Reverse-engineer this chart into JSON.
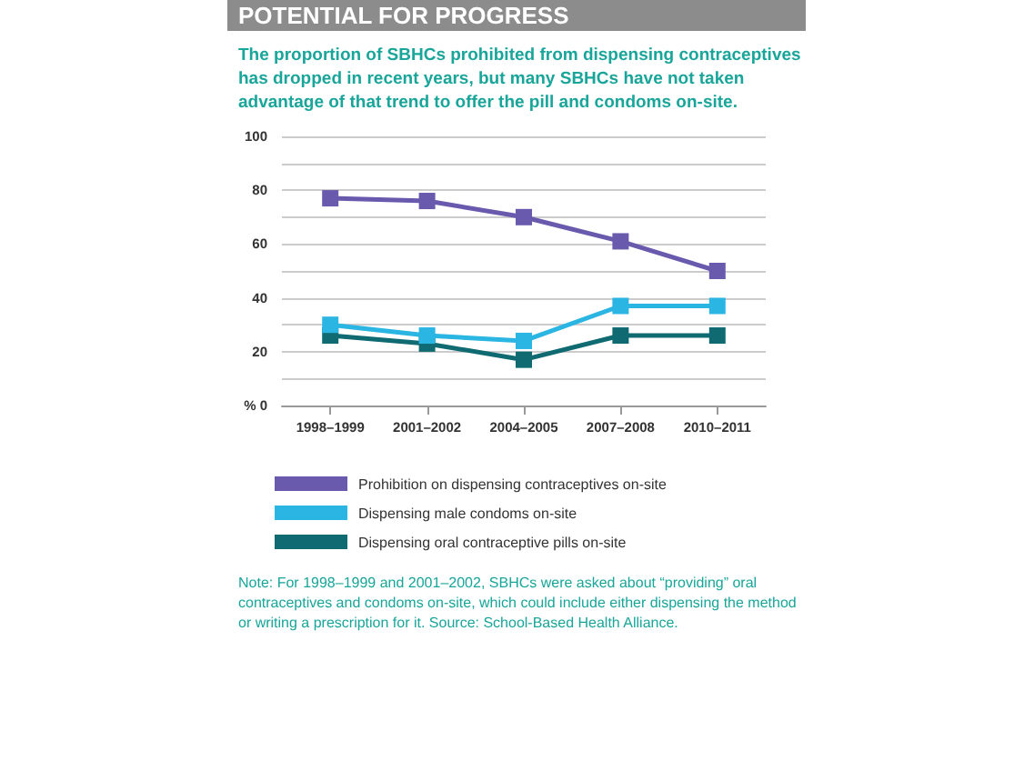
{
  "chart_data": {
    "type": "line",
    "title": "POTENTIAL FOR PROGRESS",
    "subtitle": "The proportion of SBHCs prohibited from dispensing contraceptives has dropped in recent years, but many SBHCs have not taken advantage of that trend to offer the pill and condoms on-site.",
    "categories": [
      "1998–1999",
      "2001–2002",
      "2004–2005",
      "2007–2008",
      "2010–2011"
    ],
    "series": [
      {
        "name": "Prohibition on dispensing contraceptives on-site",
        "color": "#6a5aad",
        "values": [
          77,
          76,
          70,
          61,
          50
        ]
      },
      {
        "name": "Dispensing male condoms on-site",
        "color": "#2bb5e3",
        "values": [
          30,
          26,
          24,
          37,
          37
        ]
      },
      {
        "name": "Dispensing oral contraceptive pills on-site",
        "color": "#0f6a72",
        "values": [
          26,
          23,
          17,
          26,
          26
        ]
      }
    ],
    "ylim": [
      0,
      100
    ],
    "yticks": [
      {
        "value": 0,
        "label": "% 0"
      },
      {
        "value": 10,
        "label": null
      },
      20,
      {
        "value": 30,
        "label": null
      },
      40,
      {
        "value": 50,
        "label": null
      },
      60,
      {
        "value": 70,
        "label": null
      },
      80,
      {
        "value": 90,
        "label": null
      },
      100
    ],
    "grid": "y",
    "legend": "bottom",
    "marker": "square",
    "line_style": "solid",
    "annotations": [
      "Note: For 1998–1999 and 2001–2002, SBHCs were asked about “providing” oral contraceptives and condoms on-site, which could include either dispensing the method or writing a prescription for it. Source: School-Based Health Alliance."
    ]
  }
}
